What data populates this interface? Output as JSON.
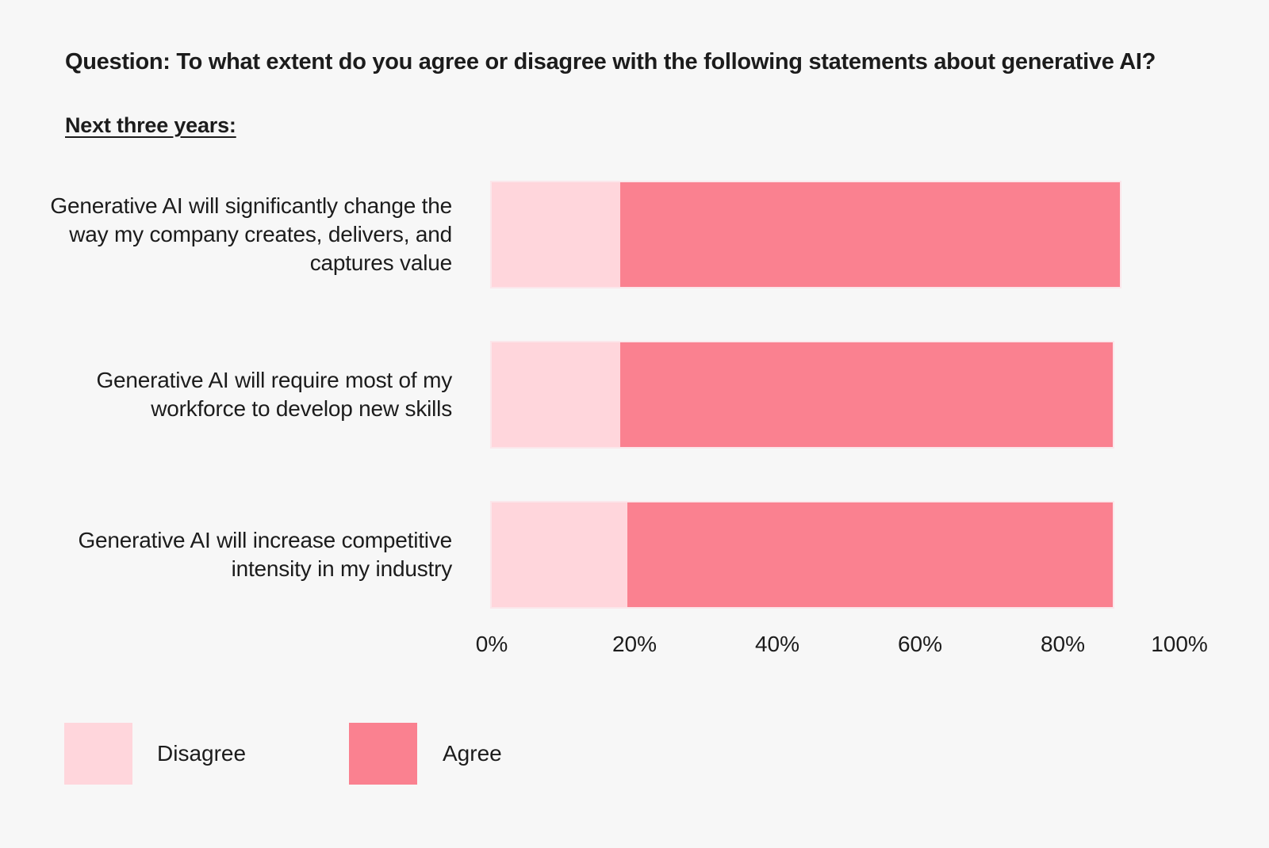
{
  "chart_data": {
    "type": "bar",
    "orientation": "horizontal",
    "stacked": true,
    "title": "Question: To what extent do you agree or disagree with the following statements about generative AI?",
    "subtitle": "Next three years:",
    "categories": [
      "Generative AI will significantly change the way my company creates, delivers, and captures value",
      "Generative AI will require most of my workforce to develop new skills",
      "Generative AI will increase competitive intensity in my industry"
    ],
    "series": [
      {
        "name": "Disagree",
        "color": "#FFD6DC",
        "values": [
          18,
          18,
          19
        ]
      },
      {
        "name": "Agree",
        "color": "#FA8190",
        "values": [
          70,
          69,
          68
        ]
      }
    ],
    "x_ticks": [
      "0%",
      "20%",
      "40%",
      "60%",
      "80%",
      "100%"
    ],
    "x_tick_values": [
      0,
      20,
      40,
      60,
      80,
      100
    ],
    "xlim": [
      0,
      100
    ],
    "grid": false,
    "legend_position": "bottom-left",
    "theme": {
      "background": "#F7F7F7",
      "text": "#1C1C1C",
      "bar_outline": "#FBE7EB"
    }
  }
}
